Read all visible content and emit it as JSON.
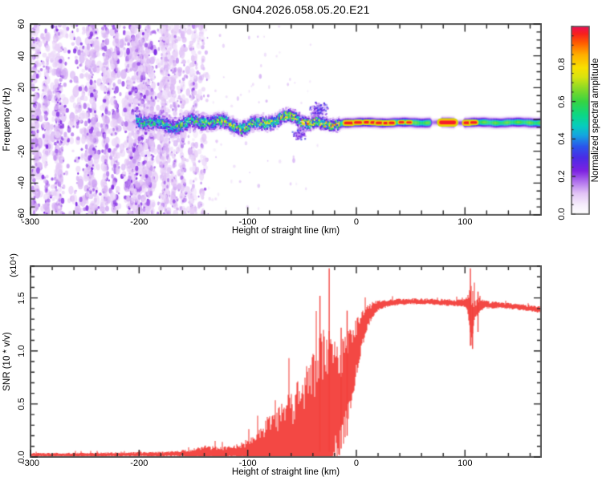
{
  "title": "GN04.2026.058.05.20.E21",
  "background": "#ffffff",
  "frame_color": "#555555",
  "tick_color": "#222222",
  "text_color": "#000000",
  "chart_data": [
    {
      "type": "heatmap",
      "title": "GN04.2026.058.05.20.E21",
      "xlabel": "Height of straight line (km)",
      "ylabel": "Frequency (Hz)",
      "xlim": [
        -300,
        170
      ],
      "ylim": [
        -60,
        60
      ],
      "xticks": [
        -300,
        -200,
        -100,
        0,
        100
      ],
      "xtick_labels": [
        "-300",
        "-200",
        "-100",
        "0",
        "100"
      ],
      "x_minor_step": 20,
      "yticks": [
        60,
        40,
        20,
        0,
        -20,
        -40,
        -60
      ],
      "ytick_labels": [
        "60",
        "40",
        "20",
        "0",
        "-20",
        "-40",
        "-60"
      ],
      "y_minor_step": 5,
      "grid": false,
      "colorbar": {
        "label": "Normalized spectral amplitude",
        "lim": [
          0,
          1
        ],
        "ticks": [
          0,
          0.2,
          0.4,
          0.6,
          0.8
        ],
        "tick_labels": [
          "0.0",
          "0.2",
          "0.4",
          "0.6",
          "0.8"
        ],
        "minor_step": 0.05
      },
      "colormap": [
        [
          0.0,
          "#ffffff"
        ],
        [
          0.05,
          "#f6edfc"
        ],
        [
          0.11,
          "#e2c4f6"
        ],
        [
          0.17,
          "#b274ee"
        ],
        [
          0.23,
          "#7d22e2"
        ],
        [
          0.3,
          "#4b2be6"
        ],
        [
          0.36,
          "#2b55ec"
        ],
        [
          0.42,
          "#14a6e0"
        ],
        [
          0.47,
          "#06cdbe"
        ],
        [
          0.53,
          "#0cd883"
        ],
        [
          0.6,
          "#37d443"
        ],
        [
          0.67,
          "#8ada26"
        ],
        [
          0.73,
          "#d8e410"
        ],
        [
          0.78,
          "#f9e000"
        ],
        [
          0.85,
          "#ffae00"
        ],
        [
          0.91,
          "#ff5f00"
        ],
        [
          0.96,
          "#f8211c"
        ],
        [
          1.0,
          "#ec0e55"
        ]
      ],
      "features": {
        "noise_dense": {
          "x_range": [
            -300,
            -183
          ],
          "freq_range": [
            -60,
            60
          ]
        },
        "noise_fade": {
          "x_range": [
            -183,
            -136
          ],
          "base_density": 0.08,
          "stripes": [
            {
              "x": -176,
              "w": 3.5,
              "a": 0.85
            },
            {
              "x": -168,
              "w": 2.5,
              "a": 0.5
            },
            {
              "x": -160,
              "w": 2.5,
              "a": 0.45
            },
            {
              "x": -150,
              "w": 2.5,
              "a": 0.4
            },
            {
              "x": -142,
              "w": 2.0,
              "a": 0.3
            }
          ]
        },
        "noise_sparse": {
          "x_range": [
            -136,
            -35
          ]
        },
        "band": {
          "x_start": -202,
          "speckle_end": -15,
          "center_hz": -2,
          "wander_hz": 3,
          "halfwidth_hz": [
            7,
            5
          ],
          "brightness": [
            0.5,
            0.76
          ]
        },
        "plumes": [
          {
            "x": -34,
            "f": 6,
            "wx": 9,
            "wf": 5,
            "n": 130
          },
          {
            "x": -52,
            "f": -9,
            "wx": 7,
            "wf": 4,
            "n": 90
          }
        ],
        "coherent": {
          "x_range": [
            -15,
            170
          ],
          "core_hw_hz": 2.5,
          "brightness": 0.62,
          "gaps": [
            [
              70,
              77
            ],
            [
              92,
              98
            ]
          ],
          "hot_segments": [
            [
              -10,
              -4,
              1.1
            ],
            [
              -1,
              4,
              1
            ],
            [
              8,
              11,
              1
            ],
            [
              14,
              17,
              1
            ],
            [
              19,
              23,
              1
            ],
            [
              26,
              29,
              1
            ],
            [
              31,
              34,
              1
            ],
            [
              40,
              43,
              0.8
            ],
            [
              47,
              50,
              0.8
            ],
            [
              78,
              90,
              1.5
            ],
            [
              100,
              104,
              1.1
            ],
            [
              106,
              110,
              1
            ]
          ]
        }
      }
    },
    {
      "type": "line",
      "xlabel": "Height of straight line (km)",
      "ylabel": "SNR (10 * v/v)",
      "scale_label": "(x10⁴)",
      "xlim": [
        -300,
        170
      ],
      "ylim": [
        0,
        1.8
      ],
      "xticks": [
        -300,
        -200,
        -100,
        0,
        100
      ],
      "xtick_labels": [
        "-300",
        "-200",
        "-100",
        "0",
        "100"
      ],
      "x_minor_step": 20,
      "yticks": [
        0,
        0.5,
        1,
        1.5
      ],
      "ytick_labels": [
        "0.0",
        "0.5",
        "1.0",
        "1.5"
      ],
      "y_minor_step": 0.1,
      "line_color": "#f2413c",
      "profile": [
        [
          -300,
          0.02,
          0.018
        ],
        [
          -240,
          0.022,
          0.02
        ],
        [
          -190,
          0.025,
          0.022
        ],
        [
          -165,
          0.03,
          0.028
        ],
        [
          -150,
          0.035,
          0.045
        ],
        [
          -138,
          0.045,
          0.07
        ],
        [
          -126,
          0.04,
          0.055
        ],
        [
          -114,
          0.045,
          0.06
        ],
        [
          -104,
          0.055,
          0.09
        ],
        [
          -96,
          0.07,
          0.13
        ],
        [
          -88,
          0.09,
          0.2
        ],
        [
          -80,
          0.13,
          0.28
        ],
        [
          -72,
          0.15,
          0.34
        ],
        [
          -64,
          0.18,
          0.4
        ],
        [
          -56,
          0.22,
          0.5
        ],
        [
          -48,
          0.27,
          0.58
        ],
        [
          -40,
          0.32,
          0.66
        ],
        [
          -33,
          0.38,
          0.78
        ],
        [
          -27,
          0.44,
          0.85
        ],
        [
          -22,
          0.5,
          0.62
        ],
        [
          -17,
          0.52,
          0.55
        ],
        [
          -12,
          0.6,
          0.52
        ],
        [
          -7,
          0.78,
          0.42
        ],
        [
          -2,
          0.95,
          0.33
        ],
        [
          3,
          1.12,
          0.22
        ],
        [
          8,
          1.27,
          0.14
        ],
        [
          14,
          1.38,
          0.08
        ],
        [
          20,
          1.43,
          0.05
        ],
        [
          30,
          1.455,
          0.035
        ],
        [
          50,
          1.47,
          0.03
        ],
        [
          70,
          1.465,
          0.03
        ],
        [
          90,
          1.455,
          0.035
        ],
        [
          100,
          1.45,
          0.04
        ],
        [
          103,
          1.45,
          0.12
        ],
        [
          106,
          1.28,
          0.35
        ],
        [
          109,
          1.38,
          0.12
        ],
        [
          113,
          1.43,
          0.08
        ],
        [
          118,
          1.44,
          0.04
        ],
        [
          135,
          1.43,
          0.03
        ],
        [
          155,
          1.41,
          0.03
        ],
        [
          170,
          1.39,
          0.035
        ]
      ],
      "spikes": [
        {
          "x": -33.5,
          "lo": 0.05,
          "hi": 1.52
        },
        {
          "x": -25,
          "lo": 0.05,
          "hi": 1.78
        },
        {
          "x": -14,
          "lo": 0.08,
          "hi": 1.22
        },
        {
          "x": -8.5,
          "lo": 0.2,
          "hi": 1.38
        },
        {
          "x": 105,
          "lo": 1.05,
          "hi": 1.78
        },
        {
          "x": 107,
          "lo": 1.02,
          "hi": 1.45
        },
        {
          "x": 112,
          "lo": 1.18,
          "hi": 1.56
        }
      ]
    }
  ]
}
